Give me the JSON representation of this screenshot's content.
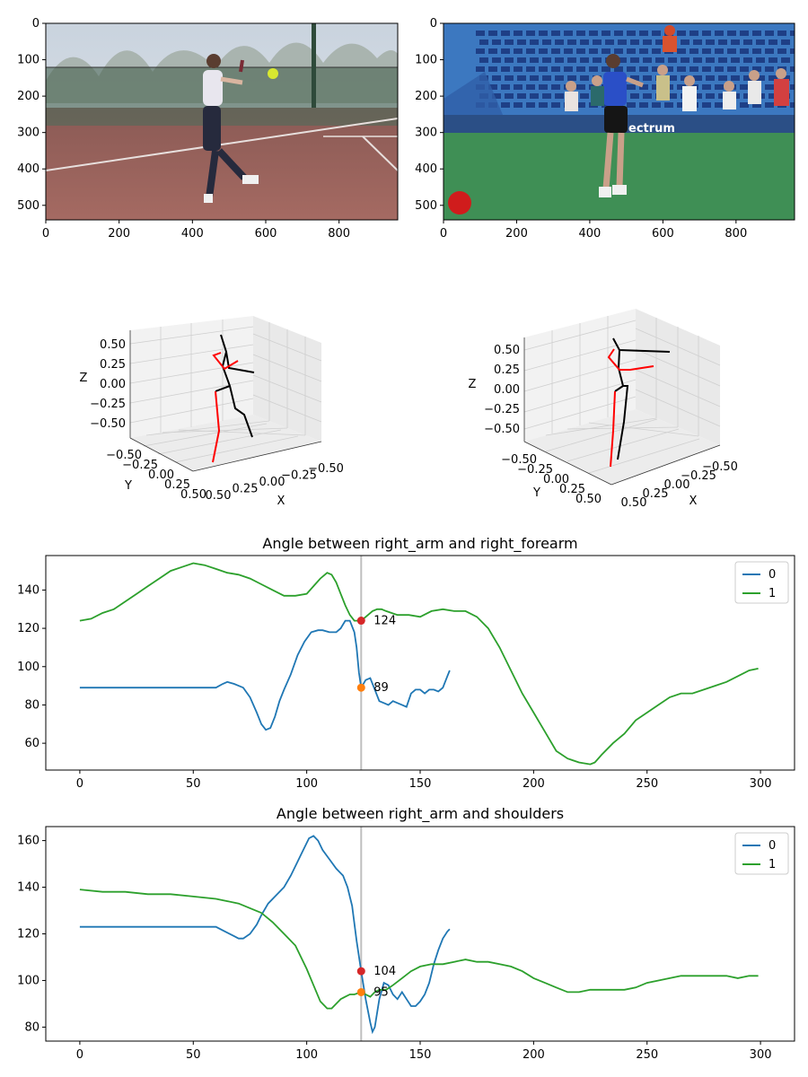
{
  "colors": {
    "series0": "#1f77b4",
    "series1": "#2ca02c",
    "marker_a": "#d62728",
    "marker_b": "#ff7f0e",
    "left_limb": "#ff0000",
    "right_limb": "#000000",
    "cursor": "#bfbfbf"
  },
  "frames": [
    {
      "x_ticks": [
        "0",
        "200",
        "400",
        "600",
        "800"
      ],
      "y_ticks": [
        "0",
        "100",
        "200",
        "300",
        "400",
        "500"
      ],
      "description_tokens": [
        "tennis-court",
        "player-forehand"
      ]
    },
    {
      "x_ticks": [
        "0",
        "200",
        "400",
        "600",
        "800"
      ],
      "y_ticks": [
        "0",
        "100",
        "200",
        "300",
        "400",
        "500"
      ],
      "overlay_text": "ectrum",
      "description_tokens": [
        "stadium-court",
        "player-forehand"
      ]
    }
  ],
  "poses": [
    {
      "xlabel": "X",
      "ylabel": "Y",
      "zlabel": "Z",
      "x_ticks": [
        "0.50",
        "0.25",
        "0.00",
        "−0.25",
        "−0.50"
      ],
      "y_ticks": [
        "−0.50",
        "−0.25",
        "0.00",
        "0.25",
        "0.50"
      ],
      "z_ticks": [
        "0.50",
        "0.25",
        "0.00",
        "−0.25",
        "−0.50"
      ]
    },
    {
      "xlabel": "X",
      "ylabel": "Y",
      "zlabel": "Z",
      "x_ticks": [
        "0.50",
        "0.25",
        "0.00",
        "−0.25",
        "−0.50"
      ],
      "y_ticks": [
        "−0.50",
        "−0.25",
        "0.00",
        "0.25",
        "0.50"
      ],
      "z_ticks": [
        "0.50",
        "0.25",
        "0.00",
        "−0.25",
        "−0.50"
      ]
    }
  ],
  "chart_data": [
    {
      "type": "line",
      "title": "Angle between right_arm and right_forearm",
      "xlabel": "",
      "ylabel": "",
      "xlim": [
        -15,
        315
      ],
      "ylim": [
        46,
        158
      ],
      "x_ticks": [
        0,
        50,
        100,
        150,
        200,
        250,
        300
      ],
      "y_ticks": [
        60,
        80,
        100,
        120,
        140
      ],
      "legend": "top-right",
      "cursor_x": 124,
      "series": [
        {
          "name": "0",
          "points": [
            [
              0,
              89
            ],
            [
              20,
              89
            ],
            [
              40,
              89
            ],
            [
              60,
              89
            ],
            [
              63,
              91
            ],
            [
              65,
              92
            ],
            [
              68,
              91
            ],
            [
              70,
              90
            ],
            [
              72,
              89
            ],
            [
              75,
              84
            ],
            [
              78,
              76
            ],
            [
              80,
              70
            ],
            [
              82,
              67
            ],
            [
              84,
              68
            ],
            [
              86,
              74
            ],
            [
              88,
              82
            ],
            [
              90,
              88
            ],
            [
              93,
              96
            ],
            [
              96,
              106
            ],
            [
              99,
              113
            ],
            [
              102,
              118
            ],
            [
              105,
              119
            ],
            [
              107,
              119
            ],
            [
              110,
              118
            ],
            [
              113,
              118
            ],
            [
              115,
              120
            ],
            [
              117,
              124
            ],
            [
              119,
              124
            ],
            [
              121,
              118
            ],
            [
              122,
              110
            ],
            [
              123,
              97
            ],
            [
              124,
              89
            ],
            [
              126,
              93
            ],
            [
              128,
              94
            ],
            [
              130,
              88
            ],
            [
              132,
              82
            ],
            [
              134,
              81
            ],
            [
              136,
              80
            ],
            [
              138,
              82
            ],
            [
              140,
              81
            ],
            [
              142,
              80
            ],
            [
              144,
              79
            ],
            [
              146,
              86
            ],
            [
              148,
              88
            ],
            [
              150,
              88
            ],
            [
              152,
              86
            ],
            [
              154,
              88
            ],
            [
              156,
              88
            ],
            [
              158,
              87
            ],
            [
              160,
              89
            ],
            [
              162,
              95
            ],
            [
              163,
              98
            ]
          ]
        },
        {
          "name": "1",
          "points": [
            [
              0,
              124
            ],
            [
              5,
              125
            ],
            [
              10,
              128
            ],
            [
              15,
              130
            ],
            [
              20,
              134
            ],
            [
              25,
              138
            ],
            [
              30,
              142
            ],
            [
              35,
              146
            ],
            [
              40,
              150
            ],
            [
              45,
              152
            ],
            [
              50,
              154
            ],
            [
              55,
              153
            ],
            [
              60,
              151
            ],
            [
              65,
              149
            ],
            [
              70,
              148
            ],
            [
              75,
              146
            ],
            [
              80,
              143
            ],
            [
              85,
              140
            ],
            [
              90,
              137
            ],
            [
              95,
              137
            ],
            [
              100,
              138
            ],
            [
              103,
              142
            ],
            [
              106,
              146
            ],
            [
              109,
              149
            ],
            [
              111,
              148
            ],
            [
              113,
              144
            ],
            [
              115,
              138
            ],
            [
              117,
              132
            ],
            [
              119,
              127
            ],
            [
              121,
              124
            ],
            [
              124,
              124
            ],
            [
              127,
              127
            ],
            [
              129,
              129
            ],
            [
              131,
              130
            ],
            [
              133,
              130
            ],
            [
              135,
              129
            ],
            [
              140,
              127
            ],
            [
              145,
              127
            ],
            [
              150,
              126
            ],
            [
              155,
              129
            ],
            [
              160,
              130
            ],
            [
              165,
              129
            ],
            [
              170,
              129
            ],
            [
              175,
              126
            ],
            [
              180,
              120
            ],
            [
              185,
              110
            ],
            [
              190,
              98
            ],
            [
              195,
              86
            ],
            [
              200,
              76
            ],
            [
              205,
              66
            ],
            [
              210,
              56
            ],
            [
              215,
              52
            ],
            [
              220,
              50
            ],
            [
              225,
              49
            ],
            [
              227,
              50
            ],
            [
              230,
              54
            ],
            [
              235,
              60
            ],
            [
              240,
              65
            ],
            [
              245,
              72
            ],
            [
              250,
              76
            ],
            [
              255,
              80
            ],
            [
              260,
              84
            ],
            [
              265,
              86
            ],
            [
              270,
              86
            ],
            [
              275,
              88
            ],
            [
              280,
              90
            ],
            [
              285,
              92
            ],
            [
              290,
              95
            ],
            [
              295,
              98
            ],
            [
              299,
              99
            ]
          ]
        }
      ],
      "markers": [
        {
          "series": "1",
          "x": 124,
          "y": 124,
          "label": "124"
        },
        {
          "series": "0",
          "x": 124,
          "y": 89,
          "label": "89"
        }
      ]
    },
    {
      "type": "line",
      "title": "Angle between right_arm and shoulders",
      "xlabel": "",
      "ylabel": "",
      "xlim": [
        -15,
        315
      ],
      "ylim": [
        74,
        166
      ],
      "x_ticks": [
        0,
        50,
        100,
        150,
        200,
        250,
        300
      ],
      "y_ticks": [
        80,
        100,
        120,
        140,
        160
      ],
      "legend": "top-right",
      "cursor_x": 124,
      "series": [
        {
          "name": "0",
          "points": [
            [
              0,
              123
            ],
            [
              20,
              123
            ],
            [
              40,
              123
            ],
            [
              60,
              123
            ],
            [
              64,
              121
            ],
            [
              68,
              119
            ],
            [
              70,
              118
            ],
            [
              72,
              118
            ],
            [
              75,
              120
            ],
            [
              78,
              124
            ],
            [
              80,
              128
            ],
            [
              83,
              133
            ],
            [
              86,
              136
            ],
            [
              90,
              140
            ],
            [
              93,
              145
            ],
            [
              96,
              151
            ],
            [
              99,
              157
            ],
            [
              101,
              161
            ],
            [
              103,
              162
            ],
            [
              105,
              160
            ],
            [
              107,
              156
            ],
            [
              110,
              152
            ],
            [
              113,
              148
            ],
            [
              116,
              145
            ],
            [
              118,
              140
            ],
            [
              120,
              132
            ],
            [
              122,
              117
            ],
            [
              124,
              104
            ],
            [
              126,
              92
            ],
            [
              128,
              82
            ],
            [
              129,
              78
            ],
            [
              130,
              80
            ],
            [
              132,
              92
            ],
            [
              134,
              99
            ],
            [
              136,
              98
            ],
            [
              138,
              94
            ],
            [
              140,
              92
            ],
            [
              142,
              95
            ],
            [
              144,
              92
            ],
            [
              146,
              89
            ],
            [
              148,
              89
            ],
            [
              150,
              91
            ],
            [
              152,
              94
            ],
            [
              154,
              99
            ],
            [
              156,
              107
            ],
            [
              158,
              113
            ],
            [
              160,
              118
            ],
            [
              162,
              121
            ],
            [
              163,
              122
            ]
          ]
        },
        {
          "name": "1",
          "points": [
            [
              0,
              139
            ],
            [
              10,
              138
            ],
            [
              20,
              138
            ],
            [
              30,
              137
            ],
            [
              40,
              137
            ],
            [
              50,
              136
            ],
            [
              60,
              135
            ],
            [
              65,
              134
            ],
            [
              70,
              133
            ],
            [
              75,
              131
            ],
            [
              80,
              129
            ],
            [
              85,
              125
            ],
            [
              90,
              120
            ],
            [
              95,
              115
            ],
            [
              100,
              105
            ],
            [
              103,
              98
            ],
            [
              106,
              91
            ],
            [
              109,
              88
            ],
            [
              111,
              88
            ],
            [
              113,
              90
            ],
            [
              115,
              92
            ],
            [
              117,
              93
            ],
            [
              119,
              94
            ],
            [
              121,
              94
            ],
            [
              124,
              95
            ],
            [
              126,
              94
            ],
            [
              128,
              93
            ],
            [
              130,
              95
            ],
            [
              132,
              96
            ],
            [
              135,
              96
            ],
            [
              138,
              98
            ],
            [
              142,
              101
            ],
            [
              146,
              104
            ],
            [
              150,
              106
            ],
            [
              155,
              107
            ],
            [
              160,
              107
            ],
            [
              165,
              108
            ],
            [
              170,
              109
            ],
            [
              175,
              108
            ],
            [
              180,
              108
            ],
            [
              185,
              107
            ],
            [
              190,
              106
            ],
            [
              195,
              104
            ],
            [
              200,
              101
            ],
            [
              205,
              99
            ],
            [
              210,
              97
            ],
            [
              215,
              95
            ],
            [
              220,
              95
            ],
            [
              225,
              96
            ],
            [
              230,
              96
            ],
            [
              235,
              96
            ],
            [
              240,
              96
            ],
            [
              245,
              97
            ],
            [
              250,
              99
            ],
            [
              255,
              100
            ],
            [
              260,
              101
            ],
            [
              265,
              102
            ],
            [
              270,
              102
            ],
            [
              275,
              102
            ],
            [
              280,
              102
            ],
            [
              285,
              102
            ],
            [
              290,
              101
            ],
            [
              295,
              102
            ],
            [
              299,
              102
            ]
          ]
        }
      ],
      "markers": [
        {
          "series": "0",
          "x": 124,
          "y": 104,
          "label": "104"
        },
        {
          "series": "1",
          "x": 124,
          "y": 95,
          "label": "95"
        }
      ]
    }
  ]
}
